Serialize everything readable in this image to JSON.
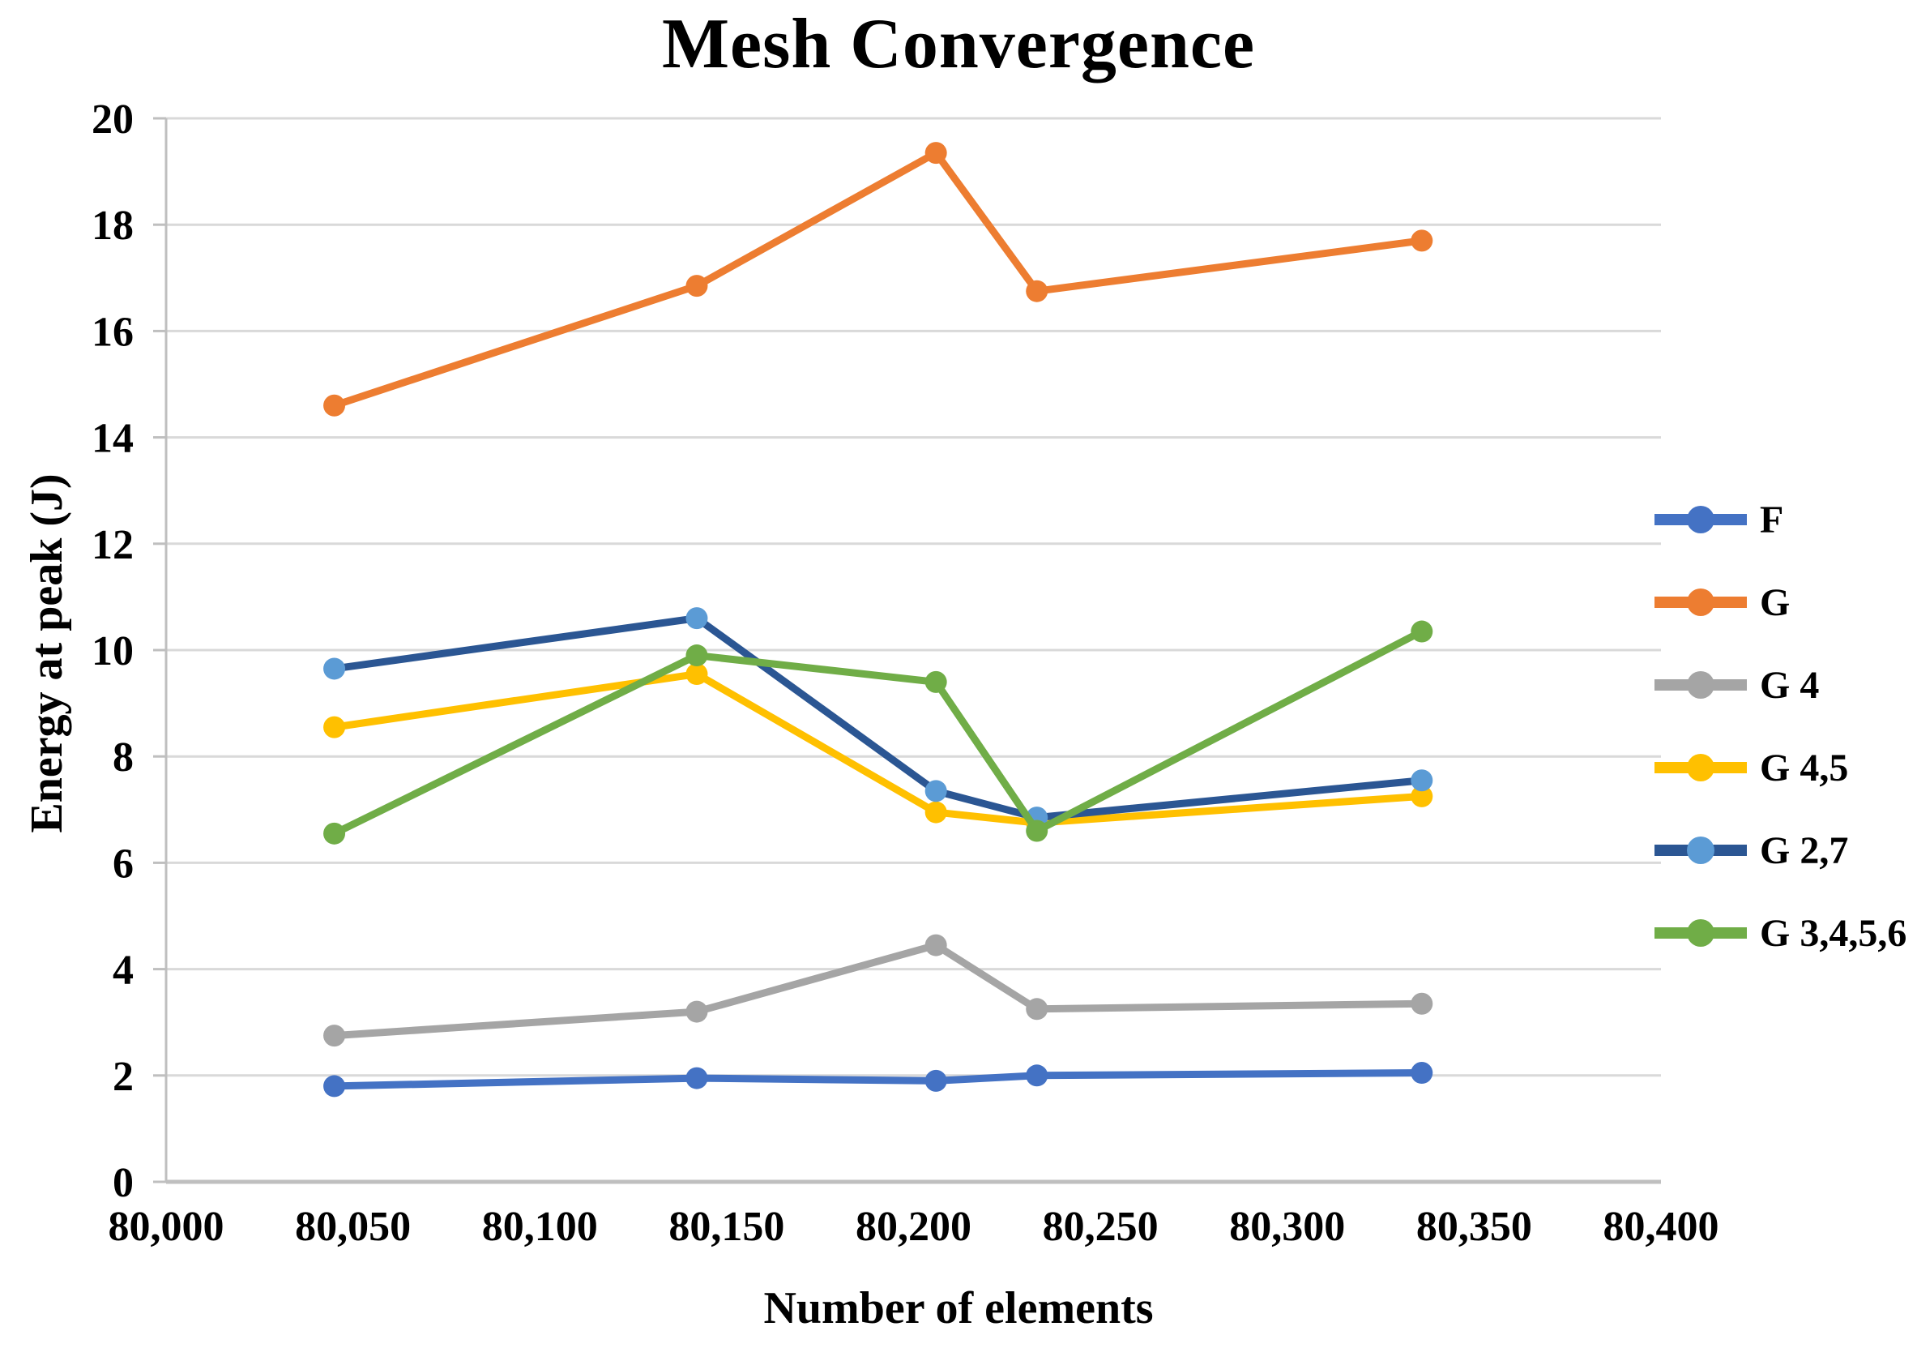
{
  "title": "Mesh Convergence",
  "colors": {
    "grid": "#D9D9D9",
    "axis": "#BFBFBF",
    "text": "#000000"
  },
  "chart_data": {
    "type": "line",
    "title": "Mesh Convergence",
    "xlabel": "Number of elements",
    "ylabel": "Energy at peak (J)",
    "xlim": [
      80000,
      80400
    ],
    "ylim": [
      0,
      20
    ],
    "grid": "horizontal",
    "legend_position": "right",
    "x_ticks": [
      80000,
      80050,
      80100,
      80150,
      80200,
      80250,
      80300,
      80350,
      80400
    ],
    "x_tick_labels": [
      "80,000",
      "80,050",
      "80,100",
      "80,150",
      "80,200",
      "80,250",
      "80,300",
      "80,350",
      "80,400"
    ],
    "y_ticks": [
      0,
      2,
      4,
      6,
      8,
      10,
      12,
      14,
      16,
      18,
      20
    ],
    "x": [
      80045,
      80142,
      80206,
      80233,
      80336
    ],
    "series": [
      {
        "name": "F",
        "color": "#4472C4",
        "marker_color": "#4472C4",
        "values": [
          1.8,
          1.95,
          1.9,
          2.0,
          2.05
        ]
      },
      {
        "name": "G",
        "color": "#ED7D31",
        "marker_color": "#ED7D31",
        "values": [
          14.6,
          16.85,
          19.35,
          16.75,
          17.7
        ]
      },
      {
        "name": "G 4",
        "color": "#A5A5A5",
        "marker_color": "#A5A5A5",
        "values": [
          2.75,
          3.2,
          4.45,
          3.25,
          3.35
        ]
      },
      {
        "name": "G 4,5",
        "color": "#FFC000",
        "marker_color": "#FFC000",
        "values": [
          8.55,
          9.55,
          6.95,
          6.75,
          7.25
        ]
      },
      {
        "name": "G 2,7",
        "color": "#2B5693",
        "marker_color": "#5B9BD5",
        "values": [
          9.65,
          10.6,
          7.35,
          6.85,
          7.55
        ]
      },
      {
        "name": "G 3,4,5,6",
        "color": "#70AD47",
        "marker_color": "#70AD47",
        "values": [
          6.55,
          9.9,
          9.4,
          6.6,
          10.35
        ]
      }
    ]
  }
}
